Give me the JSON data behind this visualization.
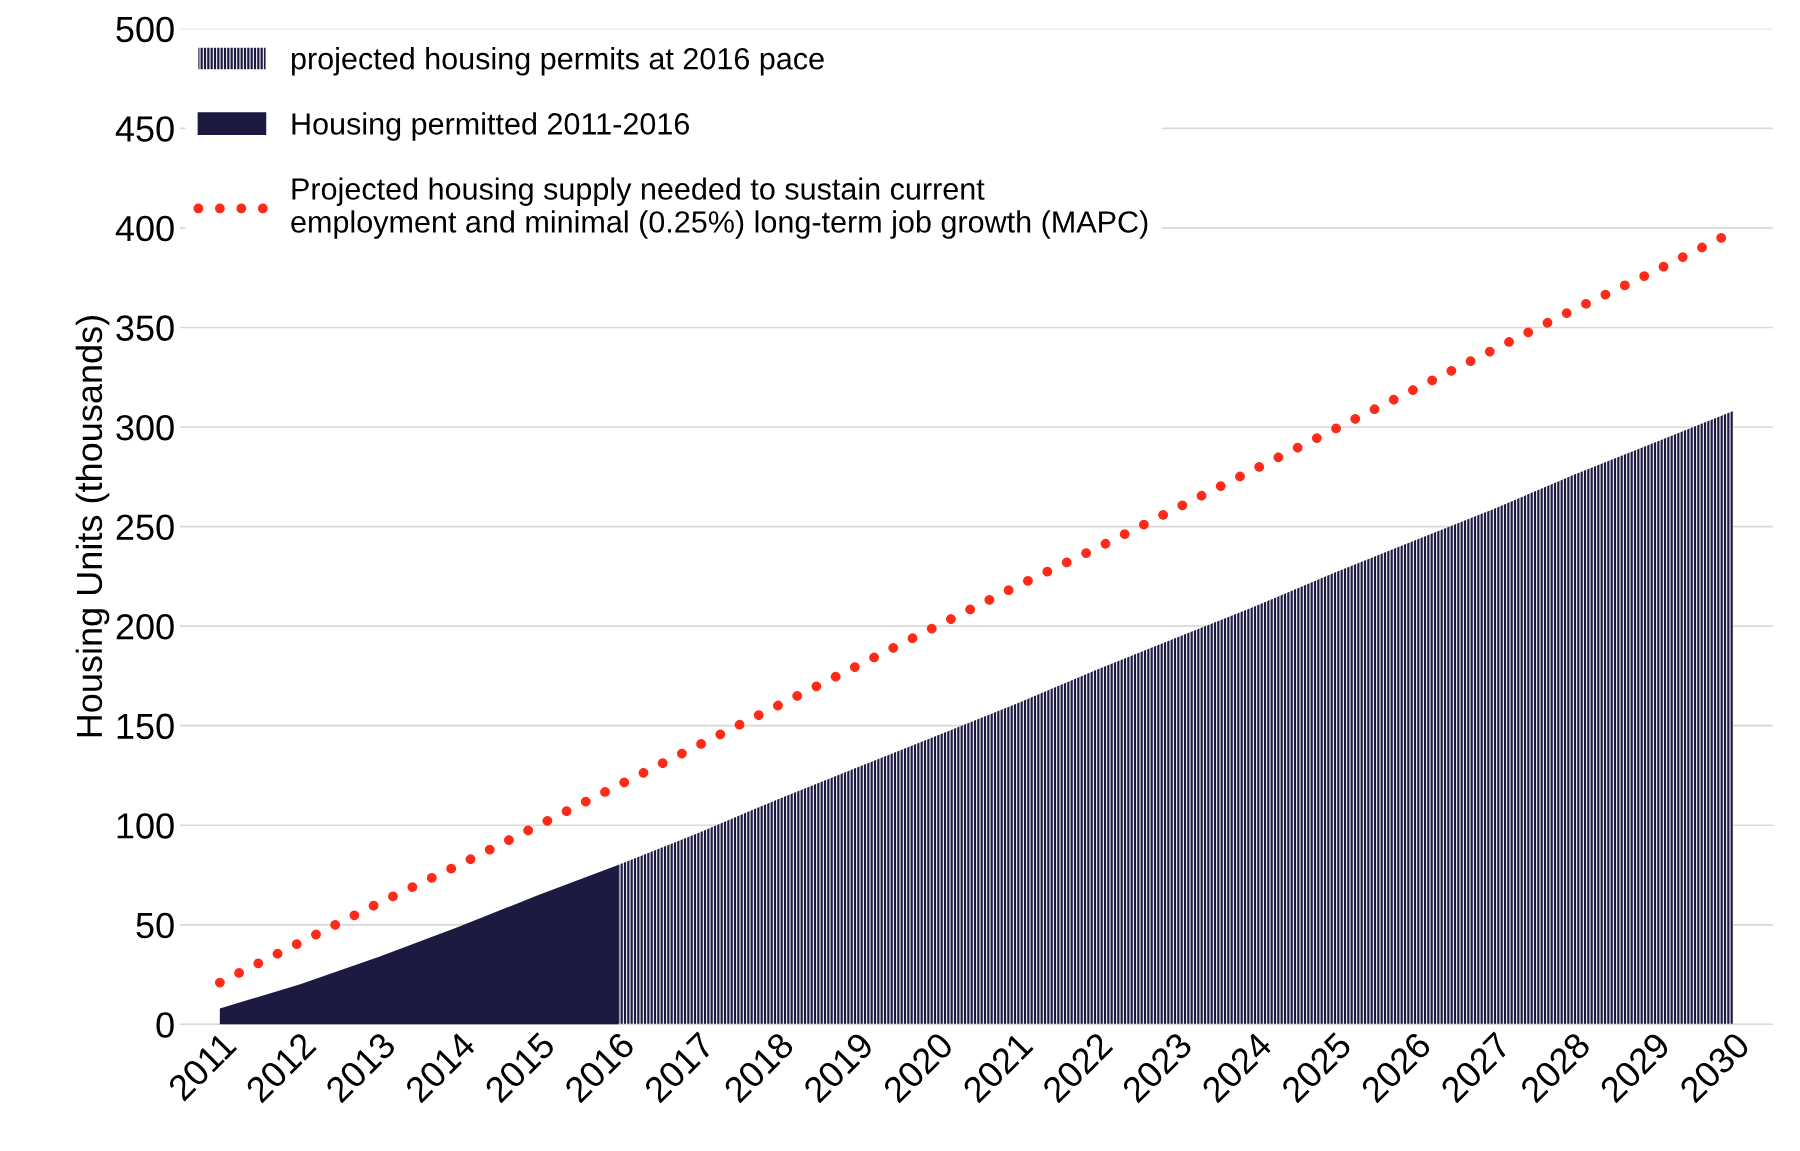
{
  "chart_data": {
    "type": "area",
    "ylabel": "Housing Units (thousands)",
    "categories": [
      "2011",
      "2012",
      "2013",
      "2014",
      "2015",
      "2016",
      "2017",
      "2018",
      "2019",
      "2020",
      "2021",
      "2022",
      "2023",
      "2024",
      "2025",
      "2026",
      "2027",
      "2028",
      "2029",
      "2030"
    ],
    "series": [
      {
        "name": "projected housing permits at 2016 pace",
        "color": "#1c1a40",
        "values": [
          null,
          null,
          null,
          null,
          null,
          80,
          96,
          113,
          129,
          145,
          161,
          178,
          194,
          210,
          227,
          243,
          259,
          276,
          292,
          308
        ]
      },
      {
        "name": "Housing permitted 2011-2016",
        "color": "#1c1a40",
        "values": [
          8,
          20,
          34,
          49,
          65,
          80,
          null,
          null,
          null,
          null,
          null,
          null,
          null,
          null,
          null,
          null,
          null,
          null,
          null,
          null
        ]
      },
      {
        "name": "Projected housing supply needed to sustain current\nemployment and minimal (0.25%) long-term job growth (MAPC)",
        "type": "line",
        "line_style": "dotted",
        "color": "#ff2a1a",
        "values": [
          21,
          41,
          61,
          80,
          100,
          120,
          140,
          160,
          180,
          200,
          220,
          239,
          259,
          279,
          299,
          319,
          339,
          359,
          378,
          398
        ]
      }
    ],
    "ylim": [
      0,
      500
    ],
    "yticks": [
      0,
      50,
      100,
      150,
      200,
      250,
      300,
      350,
      400,
      450,
      500
    ],
    "grid": "y",
    "legend": "top left"
  }
}
